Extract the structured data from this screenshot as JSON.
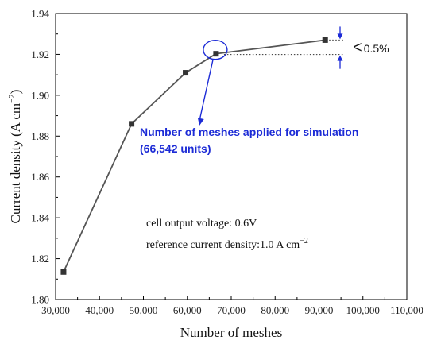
{
  "chart_data": {
    "type": "line",
    "xlabel": "Number of meshes",
    "ylabel_main": "Current density (A cm",
    "ylabel_sup": "−2",
    "ylabel_close": ")",
    "xlim": [
      30000,
      110000
    ],
    "ylim": [
      1.8,
      1.94
    ],
    "x_ticks": [
      30000,
      40000,
      50000,
      60000,
      70000,
      80000,
      90000,
      100000,
      110000
    ],
    "x_tick_labels": [
      "30,000",
      "40,000",
      "50,000",
      "60,000",
      "70,000",
      "80,000",
      "90,000",
      "100,000",
      "110,000"
    ],
    "y_ticks": [
      1.8,
      1.82,
      1.84,
      1.86,
      1.88,
      1.9,
      1.92,
      1.94
    ],
    "y_tick_labels": [
      "1.80",
      "1.82",
      "1.84",
      "1.86",
      "1.88",
      "1.90",
      "1.92",
      "1.94"
    ],
    "series": [
      {
        "x": [
          31800,
          47300,
          59600,
          66542,
          91400
        ],
        "y": [
          1.8135,
          1.886,
          1.911,
          1.9203,
          1.927
        ],
        "color": "#555555"
      }
    ],
    "annotations": {
      "selected_line1": "Number  of meshes applied for simulation",
      "selected_line2": "(66,542 units)",
      "percent": "0.5%",
      "percent_symbol": "<",
      "note1": "cell output voltage: 0.6V",
      "note2_main": "reference current density:1.0 A cm",
      "note2_sup": "−2"
    },
    "colors": {
      "line": "#555555",
      "annotation": "#1c2bd6",
      "axis": "#000000"
    },
    "highlight_index": 3
  }
}
